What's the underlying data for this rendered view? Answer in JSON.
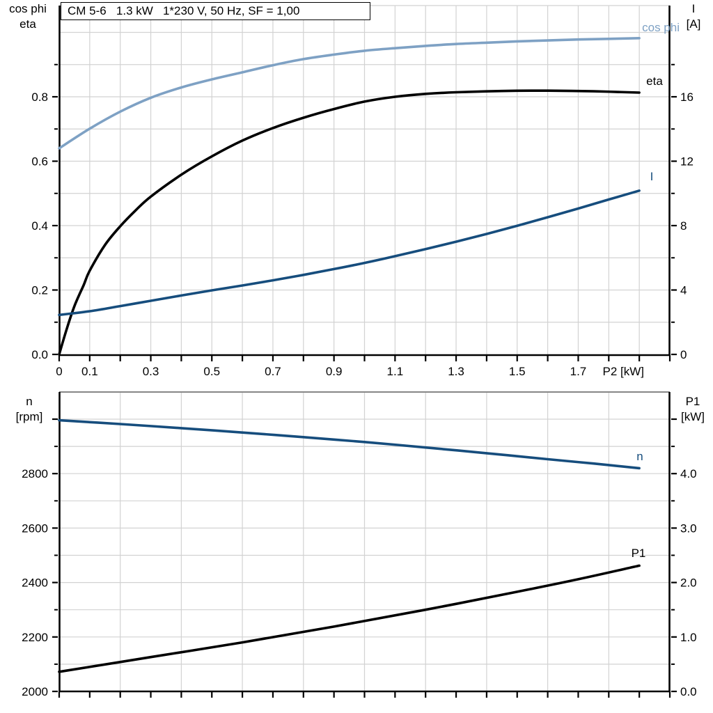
{
  "title_box": {
    "text": "CM 5-6   1.3 kW   1*230 V, 50 Hz, SF = 1,00"
  },
  "colors": {
    "black": "#000000",
    "light_blue": "#7ea1c4",
    "dark_blue": "#164d7d",
    "grid": "#d2d2d2",
    "frame_gray": "#868686"
  },
  "axis_titles": {
    "top_left": [
      "cos phi",
      "eta"
    ],
    "top_right": [
      "I",
      "[A]"
    ],
    "bottom_left": [
      "n",
      "[rpm]"
    ],
    "bottom_right": [
      "P1",
      "[kW]"
    ]
  },
  "chart_data": [
    {
      "id": "top-chart",
      "type": "line",
      "title": "CM 5-6   1.3 kW   1*230 V, 50 Hz, SF = 1,00",
      "xlabel": "P2 [kW]",
      "x_axis": {
        "min": 0,
        "max": 2.0,
        "tick_step": 0.1,
        "labeled_ticks": [
          {
            "v": 0,
            "t": "0"
          },
          {
            "v": 0.1,
            "t": "0.1"
          },
          {
            "v": 0.3,
            "t": "0.3"
          },
          {
            "v": 0.5,
            "t": "0.5"
          },
          {
            "v": 0.7,
            "t": "0.7"
          },
          {
            "v": 0.9,
            "t": "0.9"
          },
          {
            "v": 1.1,
            "t": "1.1"
          },
          {
            "v": 1.3,
            "t": "1.3"
          },
          {
            "v": 1.5,
            "t": "1.5"
          },
          {
            "v": 1.7,
            "t": "1.7"
          }
        ],
        "grid_values": [
          0.1,
          0.2,
          0.3,
          0.4,
          0.5,
          0.6,
          0.7,
          0.8,
          0.9,
          1.0,
          1.1,
          1.2,
          1.3,
          1.4,
          1.5,
          1.6,
          1.7,
          1.8,
          1.9
        ]
      },
      "left_axis": {
        "title": [
          "cos phi",
          "eta"
        ],
        "major_ticks": [
          {
            "v": 0.0,
            "t": "0.0"
          },
          {
            "v": 0.2,
            "t": "0.2"
          },
          {
            "v": 0.4,
            "t": "0.4"
          },
          {
            "v": 0.6,
            "t": "0.6"
          },
          {
            "v": 0.8,
            "t": "0.8"
          }
        ],
        "minor_ticks": [
          0.1,
          0.3,
          0.5,
          0.7,
          0.9
        ],
        "grid_values": [
          0.1,
          0.2,
          0.3,
          0.4,
          0.5,
          0.6,
          0.7,
          0.8,
          0.9,
          1.0
        ]
      },
      "right_axis": {
        "title": [
          "I",
          "[A]"
        ],
        "major_ticks": [
          {
            "v": 0,
            "t": "0"
          },
          {
            "v": 4,
            "t": "4"
          },
          {
            "v": 8,
            "t": "8"
          },
          {
            "v": 12,
            "t": "12"
          },
          {
            "v": 16,
            "t": "16"
          }
        ],
        "minor_ticks": [
          2,
          6,
          10,
          14,
          18
        ]
      },
      "series": [
        {
          "key": "cos-phi",
          "label": "cos phi",
          "axis": "left",
          "color_key": "light_blue",
          "points": [
            [
              0,
              0.64
            ],
            [
              0.1,
              0.701
            ],
            [
              0.2,
              0.754
            ],
            [
              0.3,
              0.797
            ],
            [
              0.4,
              0.829
            ],
            [
              0.5,
              0.854
            ],
            [
              0.6,
              0.876
            ],
            [
              0.7,
              0.898
            ],
            [
              0.8,
              0.917
            ],
            [
              0.9,
              0.931
            ],
            [
              1.0,
              0.943
            ],
            [
              1.1,
              0.951
            ],
            [
              1.2,
              0.958
            ],
            [
              1.3,
              0.964
            ],
            [
              1.4,
              0.968
            ],
            [
              1.5,
              0.972
            ],
            [
              1.6,
              0.975
            ],
            [
              1.7,
              0.978
            ],
            [
              1.8,
              0.98
            ],
            [
              1.9,
              0.982
            ]
          ]
        },
        {
          "key": "eta",
          "label": "eta",
          "axis": "left",
          "color_key": "black",
          "points": [
            [
              0,
              0.0
            ],
            [
              0.025,
              0.08
            ],
            [
              0.05,
              0.15
            ],
            [
              0.08,
              0.215
            ],
            [
              0.1,
              0.26
            ],
            [
              0.15,
              0.34
            ],
            [
              0.2,
              0.398
            ],
            [
              0.25,
              0.447
            ],
            [
              0.3,
              0.49
            ],
            [
              0.4,
              0.558
            ],
            [
              0.5,
              0.615
            ],
            [
              0.6,
              0.664
            ],
            [
              0.7,
              0.703
            ],
            [
              0.8,
              0.735
            ],
            [
              0.9,
              0.762
            ],
            [
              1.0,
              0.785
            ],
            [
              1.1,
              0.8
            ],
            [
              1.2,
              0.809
            ],
            [
              1.3,
              0.814
            ],
            [
              1.45,
              0.818
            ],
            [
              1.6,
              0.819
            ],
            [
              1.75,
              0.817
            ],
            [
              1.9,
              0.813
            ]
          ]
        },
        {
          "key": "current",
          "label": "I",
          "axis": "right",
          "color_key": "dark_blue",
          "points": [
            [
              0,
              2.45
            ],
            [
              0.1,
              2.68
            ],
            [
              0.2,
              3.0
            ],
            [
              0.3,
              3.33
            ],
            [
              0.4,
              3.66
            ],
            [
              0.5,
              3.98
            ],
            [
              0.6,
              4.28
            ],
            [
              0.7,
              4.6
            ],
            [
              0.8,
              4.94
            ],
            [
              0.9,
              5.3
            ],
            [
              1.0,
              5.68
            ],
            [
              1.1,
              6.1
            ],
            [
              1.2,
              6.54
            ],
            [
              1.3,
              7.0
            ],
            [
              1.4,
              7.48
            ],
            [
              1.5,
              7.99
            ],
            [
              1.6,
              8.52
            ],
            [
              1.7,
              9.06
            ],
            [
              1.8,
              9.62
            ],
            [
              1.9,
              10.17
            ]
          ]
        }
      ]
    },
    {
      "id": "bottom-chart",
      "type": "line",
      "xlabel": "",
      "x_axis": {
        "min": 0,
        "max": 2.0,
        "tick_step": 0.1,
        "labeled_ticks": [],
        "grid_values": [
          0.2,
          0.4,
          0.6,
          0.8,
          1.0,
          1.2,
          1.4,
          1.6,
          1.8
        ]
      },
      "left_axis": {
        "title": [
          "n",
          "[rpm]"
        ],
        "major_ticks": [
          {
            "v": 2000,
            "t": "2000"
          },
          {
            "v": 2200,
            "t": "2200"
          },
          {
            "v": 2400,
            "t": "2400"
          },
          {
            "v": 2600,
            "t": "2600"
          },
          {
            "v": 2800,
            "t": "2800"
          },
          {
            "v": 3000,
            "t": ""
          }
        ],
        "minor_ticks": [
          2100,
          2300,
          2500,
          2700,
          2900
        ],
        "grid_values": [
          2100,
          2200,
          2300,
          2400,
          2500,
          2600,
          2700,
          2800,
          2900,
          3000
        ]
      },
      "right_axis": {
        "title": [
          "P1",
          "[kW]"
        ],
        "major_ticks": [
          {
            "v": 0,
            "t": "0.0"
          },
          {
            "v": 1,
            "t": "1.0"
          },
          {
            "v": 2,
            "t": "2.0"
          },
          {
            "v": 3,
            "t": "3.0"
          },
          {
            "v": 4,
            "t": "4.0"
          },
          {
            "v": 5,
            "t": ""
          }
        ],
        "minor_ticks": [
          0.5,
          1.5,
          2.5,
          3.5,
          4.5
        ]
      },
      "series": [
        {
          "key": "speed",
          "label": "n",
          "axis": "left",
          "color_key": "dark_blue",
          "points": [
            [
              0,
              2996
            ],
            [
              0.2,
              2982
            ],
            [
              0.4,
              2967
            ],
            [
              0.6,
              2951
            ],
            [
              0.8,
              2934
            ],
            [
              1.0,
              2916
            ],
            [
              1.2,
              2896
            ],
            [
              1.4,
              2875
            ],
            [
              1.6,
              2853
            ],
            [
              1.75,
              2837
            ],
            [
              1.9,
              2820
            ]
          ]
        },
        {
          "key": "p1",
          "label": "P1",
          "axis": "left_kw",
          "color_key": "black",
          "points": [
            [
              0,
              0.36
            ],
            [
              0.3,
              0.63
            ],
            [
              0.6,
              0.9
            ],
            [
              0.9,
              1.19
            ],
            [
              1.2,
              1.5
            ],
            [
              1.5,
              1.83
            ],
            [
              1.7,
              2.06
            ],
            [
              1.9,
              2.31
            ]
          ]
        }
      ]
    }
  ]
}
